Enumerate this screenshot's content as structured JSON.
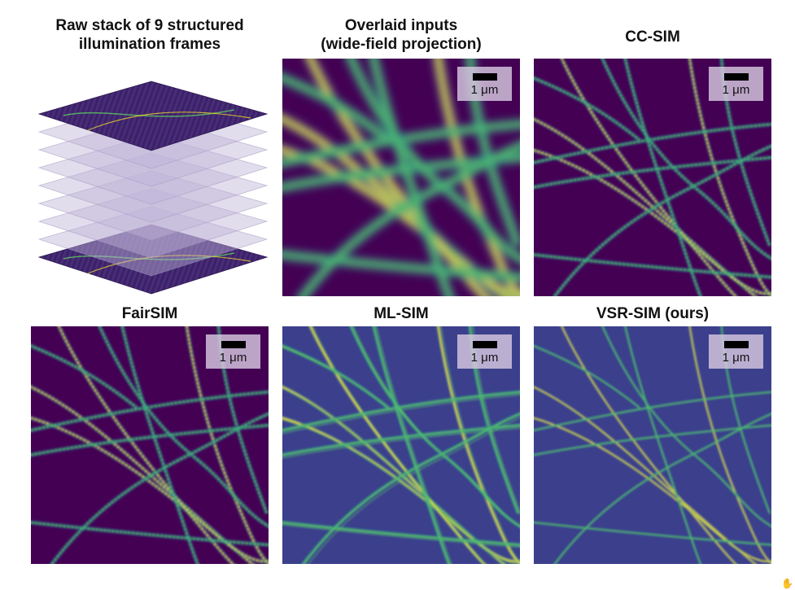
{
  "titles": {
    "raw_stack": "Raw stack of 9 structured\nillumination frames",
    "overlaid": "Overlaid inputs\n(wide-field projection)",
    "ccsim": "CC-SIM",
    "fairsim": "FairSIM",
    "mlsim": "ML-SIM",
    "vsrsim": "VSR-SIM (ours)"
  },
  "scalebar": {
    "label": "1 μm"
  },
  "colors": {
    "background": "#440154",
    "dark": "#3b2a6e",
    "mid": "#21918c",
    "bright": "#5ec962",
    "highlight": "#fde725"
  },
  "stack": {
    "frame_count": 9
  }
}
